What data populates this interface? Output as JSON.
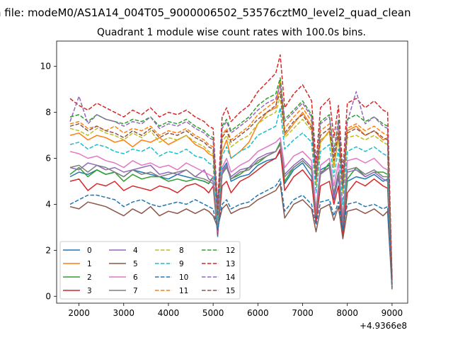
{
  "chart_data": {
    "type": "line",
    "suptitle": "n file: modeM0/AS1A14_004T05_9000006502_53576cztM0_level2_quad_clean",
    "title": "Quadrant 1 module wise count rates with 100.0s bins.",
    "xlabel": "",
    "ylabel": "",
    "x_offset_label": "+4.9366e8",
    "xlim": [
      1500,
      9350
    ],
    "ylim": [
      -0.3,
      11.1
    ],
    "grid": false,
    "legend": {
      "placement": "lower-left",
      "columns": 4
    },
    "x_ticks": [
      2000,
      3000,
      4000,
      5000,
      6000,
      7000,
      8000,
      9000
    ],
    "x_tick_labels": [
      "2000",
      "3000",
      "4000",
      "5000",
      "6000",
      "7000",
      "8000",
      "9000"
    ],
    "y_ticks": [
      0,
      2,
      4,
      6,
      8,
      10
    ],
    "y_tick_labels": [
      "0",
      "2",
      "4",
      "6",
      "8",
      "10"
    ],
    "x": [
      1800,
      2000,
      2200,
      2400,
      2600,
      2800,
      3000,
      3200,
      3400,
      3600,
      3800,
      4000,
      4200,
      4400,
      4600,
      4800,
      4900,
      5000,
      5100,
      5200,
      5300,
      5400,
      5600,
      5800,
      6000,
      6200,
      6400,
      6500,
      6600,
      6800,
      7000,
      7200,
      7300,
      7400,
      7600,
      7700,
      7800,
      7900,
      8000,
      8200,
      8400,
      8600,
      8800,
      8900,
      9000
    ],
    "series": [
      {
        "name": "0",
        "color": "#1f77b4",
        "style": "solid",
        "values": [
          5.2,
          5.4,
          5.3,
          5.5,
          5.3,
          5.4,
          5.2,
          5.5,
          5.4,
          5.3,
          5.2,
          5.1,
          5.3,
          5.2,
          5.1,
          5.0,
          4.9,
          5.2,
          2.6,
          5.5,
          5.8,
          5.0,
          5.2,
          5.3,
          5.7,
          5.9,
          6.0,
          6.3,
          4.9,
          5.5,
          5.8,
          5.2,
          3.4,
          5.5,
          5.7,
          4.2,
          5.2,
          3.0,
          5.0,
          5.2,
          5.1,
          5.3,
          5.0,
          5.1,
          0.5
        ]
      },
      {
        "name": "1",
        "color": "#ff7f0e",
        "style": "solid",
        "values": [
          7.0,
          7.1,
          6.8,
          7.0,
          6.9,
          6.7,
          6.8,
          6.5,
          6.8,
          6.7,
          6.9,
          6.6,
          6.8,
          7.0,
          6.6,
          6.4,
          6.2,
          6.1,
          3.6,
          6.3,
          6.8,
          6.0,
          6.3,
          6.7,
          7.5,
          8.0,
          8.2,
          9.4,
          7.0,
          7.5,
          8.0,
          7.4,
          5.0,
          6.7,
          7.2,
          5.6,
          7.0,
          4.5,
          7.2,
          7.4,
          7.0,
          7.2,
          6.8,
          6.9,
          0.7
        ]
      },
      {
        "name": "2",
        "color": "#2ca02c",
        "style": "solid",
        "values": [
          5.3,
          5.6,
          5.2,
          5.5,
          5.3,
          5.4,
          5.0,
          5.3,
          5.1,
          5.2,
          5.2,
          5.0,
          5.1,
          5.0,
          5.1,
          5.0,
          4.9,
          5.2,
          2.9,
          5.3,
          5.7,
          5.1,
          5.3,
          5.6,
          5.8,
          6.1,
          6.3,
          6.7,
          5.0,
          5.6,
          5.9,
          5.5,
          3.6,
          5.3,
          5.8,
          4.4,
          5.4,
          3.1,
          5.1,
          5.6,
          5.2,
          5.4,
          5.4,
          5.3,
          0.4
        ]
      },
      {
        "name": "3",
        "color": "#d62728",
        "style": "solid",
        "values": [
          5.0,
          5.1,
          4.6,
          4.9,
          4.8,
          5.0,
          4.6,
          4.8,
          4.7,
          4.6,
          4.8,
          4.7,
          4.5,
          4.8,
          4.9,
          4.7,
          4.5,
          4.8,
          2.7,
          4.8,
          5.0,
          4.5,
          5.0,
          5.2,
          5.5,
          5.8,
          6.0,
          6.4,
          4.6,
          5.2,
          5.5,
          5.0,
          3.2,
          4.8,
          5.0,
          4.0,
          4.8,
          2.6,
          4.5,
          5.0,
          4.8,
          5.1,
          4.8,
          4.7,
          0.4
        ]
      },
      {
        "name": "4",
        "color": "#9467bd",
        "style": "solid",
        "values": [
          5.6,
          5.5,
          5.8,
          5.7,
          5.5,
          5.6,
          5.4,
          5.5,
          5.6,
          5.7,
          5.3,
          5.4,
          5.3,
          5.5,
          5.2,
          5.5,
          5.1,
          5.0,
          2.8,
          5.4,
          5.7,
          5.2,
          5.5,
          5.6,
          6.0,
          6.2,
          6.3,
          6.6,
          5.3,
          5.7,
          6.0,
          5.6,
          3.5,
          5.3,
          5.6,
          4.3,
          5.3,
          3.1,
          5.4,
          5.5,
          5.2,
          5.4,
          5.1,
          5.0,
          0.5
        ]
      },
      {
        "name": "5",
        "color": "#8c564b",
        "style": "solid",
        "values": [
          3.9,
          3.8,
          4.1,
          4.0,
          3.9,
          3.7,
          3.5,
          3.8,
          3.6,
          3.9,
          3.5,
          3.7,
          3.6,
          3.8,
          3.6,
          3.8,
          3.7,
          3.5,
          3.0,
          3.8,
          4.0,
          3.6,
          3.8,
          3.9,
          4.2,
          4.4,
          4.6,
          4.9,
          3.4,
          4.0,
          4.2,
          3.8,
          2.8,
          3.8,
          4.0,
          3.3,
          3.9,
          2.5,
          3.7,
          3.8,
          3.6,
          3.8,
          3.5,
          3.7,
          0.3
        ]
      },
      {
        "name": "6",
        "color": "#e377c2",
        "style": "solid",
        "values": [
          6.3,
          6.2,
          6.0,
          6.1,
          5.9,
          5.8,
          5.6,
          5.9,
          5.7,
          5.8,
          5.6,
          5.7,
          5.5,
          5.8,
          5.6,
          5.4,
          5.3,
          5.2,
          3.0,
          5.6,
          6.0,
          5.4,
          5.7,
          5.9,
          6.3,
          6.5,
          6.7,
          6.9,
          5.6,
          6.1,
          6.3,
          5.9,
          3.8,
          5.7,
          6.0,
          4.8,
          5.8,
          3.5,
          5.9,
          6.0,
          5.8,
          6.0,
          5.6,
          5.5,
          0.5
        ]
      },
      {
        "name": "7",
        "color": "#7f7f7f",
        "style": "solid",
        "values": [
          5.6,
          5.7,
          5.4,
          5.7,
          5.6,
          5.4,
          5.2,
          5.5,
          5.3,
          5.4,
          5.2,
          5.3,
          5.4,
          5.5,
          5.2,
          5.1,
          5.0,
          4.9,
          2.9,
          5.3,
          5.6,
          5.1,
          5.4,
          5.5,
          5.9,
          6.1,
          6.3,
          6.6,
          5.2,
          5.6,
          5.9,
          5.5,
          3.5,
          5.4,
          5.6,
          4.5,
          5.4,
          3.2,
          5.5,
          5.6,
          5.3,
          5.5,
          5.2,
          5.2,
          0.4
        ]
      },
      {
        "name": "8",
        "color": "#bcbd22",
        "style": "dashed",
        "values": [
          7.3,
          7.2,
          7.0,
          7.3,
          7.1,
          7.0,
          6.8,
          7.1,
          6.9,
          7.2,
          6.7,
          6.9,
          6.8,
          7.0,
          6.7,
          6.5,
          6.3,
          6.2,
          3.4,
          6.7,
          7.0,
          6.5,
          6.8,
          7.0,
          7.5,
          7.8,
          8.0,
          8.7,
          6.9,
          7.3,
          7.7,
          7.2,
          4.8,
          6.8,
          7.1,
          5.6,
          6.9,
          4.5,
          6.9,
          7.0,
          6.8,
          7.0,
          6.7,
          6.6,
          0.6
        ]
      },
      {
        "name": "9",
        "color": "#17becf",
        "style": "dashed",
        "values": [
          6.6,
          6.7,
          6.4,
          6.6,
          6.5,
          6.3,
          6.2,
          6.4,
          6.3,
          6.5,
          6.1,
          6.3,
          6.2,
          6.4,
          6.1,
          6.0,
          5.8,
          5.7,
          3.3,
          6.1,
          6.5,
          6.0,
          6.3,
          6.5,
          7.0,
          7.2,
          7.4,
          8.2,
          6.4,
          6.8,
          7.1,
          6.7,
          4.5,
          6.3,
          6.6,
          5.2,
          6.4,
          4.0,
          6.3,
          6.5,
          6.3,
          6.5,
          6.2,
          6.1,
          0.5
        ]
      },
      {
        "name": "10",
        "color": "#1f77b4",
        "style": "dashed",
        "values": [
          4.0,
          4.2,
          4.4,
          4.4,
          4.3,
          4.2,
          3.9,
          4.1,
          4.2,
          4.0,
          3.9,
          4.0,
          4.1,
          4.0,
          4.2,
          4.0,
          3.9,
          3.8,
          2.9,
          4.0,
          4.2,
          3.8,
          4.0,
          4.1,
          4.4,
          4.6,
          4.8,
          5.1,
          3.7,
          4.2,
          4.4,
          4.0,
          3.1,
          4.1,
          4.2,
          3.5,
          4.1,
          2.9,
          4.0,
          4.1,
          3.9,
          4.0,
          3.8,
          3.9,
          0.4
        ]
      },
      {
        "name": "11",
        "color": "#ff7f0e",
        "style": "dashed",
        "values": [
          7.5,
          7.6,
          7.3,
          7.4,
          7.2,
          7.4,
          7.1,
          7.3,
          7.2,
          7.4,
          7.0,
          7.2,
          7.1,
          7.3,
          7.0,
          6.8,
          6.6,
          6.5,
          3.6,
          7.0,
          7.3,
          6.8,
          7.1,
          7.4,
          7.9,
          8.2,
          8.5,
          9.3,
          7.3,
          7.8,
          8.2,
          7.6,
          5.2,
          7.2,
          7.5,
          6.0,
          7.3,
          4.8,
          7.3,
          7.5,
          7.2,
          7.4,
          7.1,
          7.0,
          0.7
        ]
      },
      {
        "name": "12",
        "color": "#2ca02c",
        "style": "dashed",
        "values": [
          7.8,
          7.9,
          7.6,
          7.9,
          7.7,
          7.6,
          7.5,
          7.7,
          7.6,
          7.8,
          7.4,
          7.6,
          7.5,
          7.7,
          7.4,
          7.2,
          7.0,
          6.9,
          3.8,
          7.4,
          7.7,
          7.2,
          7.5,
          7.8,
          8.3,
          8.6,
          8.8,
          9.5,
          7.7,
          8.1,
          8.5,
          7.9,
          5.4,
          7.6,
          7.9,
          6.3,
          7.7,
          5.0,
          7.7,
          7.9,
          7.6,
          7.8,
          7.5,
          7.4,
          0.7
        ]
      },
      {
        "name": "13",
        "color": "#d62728",
        "style": "dashed",
        "values": [
          8.6,
          8.3,
          8.1,
          8.4,
          8.2,
          8.0,
          7.8,
          8.1,
          7.9,
          8.2,
          7.8,
          8.0,
          7.9,
          8.1,
          7.8,
          7.6,
          7.4,
          7.3,
          4.0,
          7.8,
          8.2,
          7.6,
          8.0,
          8.3,
          8.9,
          9.3,
          9.7,
          10.5,
          8.2,
          8.8,
          9.2,
          8.5,
          5.8,
          8.2,
          8.6,
          6.9,
          8.3,
          5.4,
          8.4,
          8.6,
          8.2,
          8.5,
          8.1,
          8.0,
          0.8
        ]
      },
      {
        "name": "14",
        "color": "#9467bd",
        "style": "dashed",
        "values": [
          7.6,
          8.7,
          7.5,
          7.9,
          7.7,
          7.6,
          7.4,
          7.6,
          7.5,
          7.8,
          7.3,
          7.5,
          7.4,
          7.6,
          7.3,
          7.1,
          6.9,
          6.8,
          3.7,
          7.3,
          7.6,
          7.1,
          7.4,
          7.7,
          8.1,
          8.4,
          8.6,
          9.2,
          7.6,
          8.0,
          8.4,
          7.8,
          5.3,
          7.5,
          7.8,
          6.2,
          7.6,
          4.9,
          7.6,
          8.9,
          7.5,
          7.8,
          7.4,
          7.3,
          0.6
        ]
      },
      {
        "name": "15",
        "color": "#8c564b",
        "style": "dashed",
        "values": [
          7.4,
          7.5,
          7.2,
          7.4,
          7.2,
          7.1,
          6.9,
          7.2,
          7.0,
          7.3,
          6.9,
          7.1,
          7.0,
          7.2,
          6.9,
          6.7,
          6.5,
          6.4,
          3.5,
          6.9,
          7.2,
          6.7,
          7.0,
          7.3,
          7.7,
          8.0,
          8.3,
          8.9,
          7.1,
          7.6,
          7.9,
          7.3,
          5.1,
          7.0,
          7.3,
          5.9,
          7.1,
          4.7,
          7.1,
          7.3,
          7.0,
          7.2,
          6.9,
          6.8,
          0.6
        ]
      }
    ]
  }
}
